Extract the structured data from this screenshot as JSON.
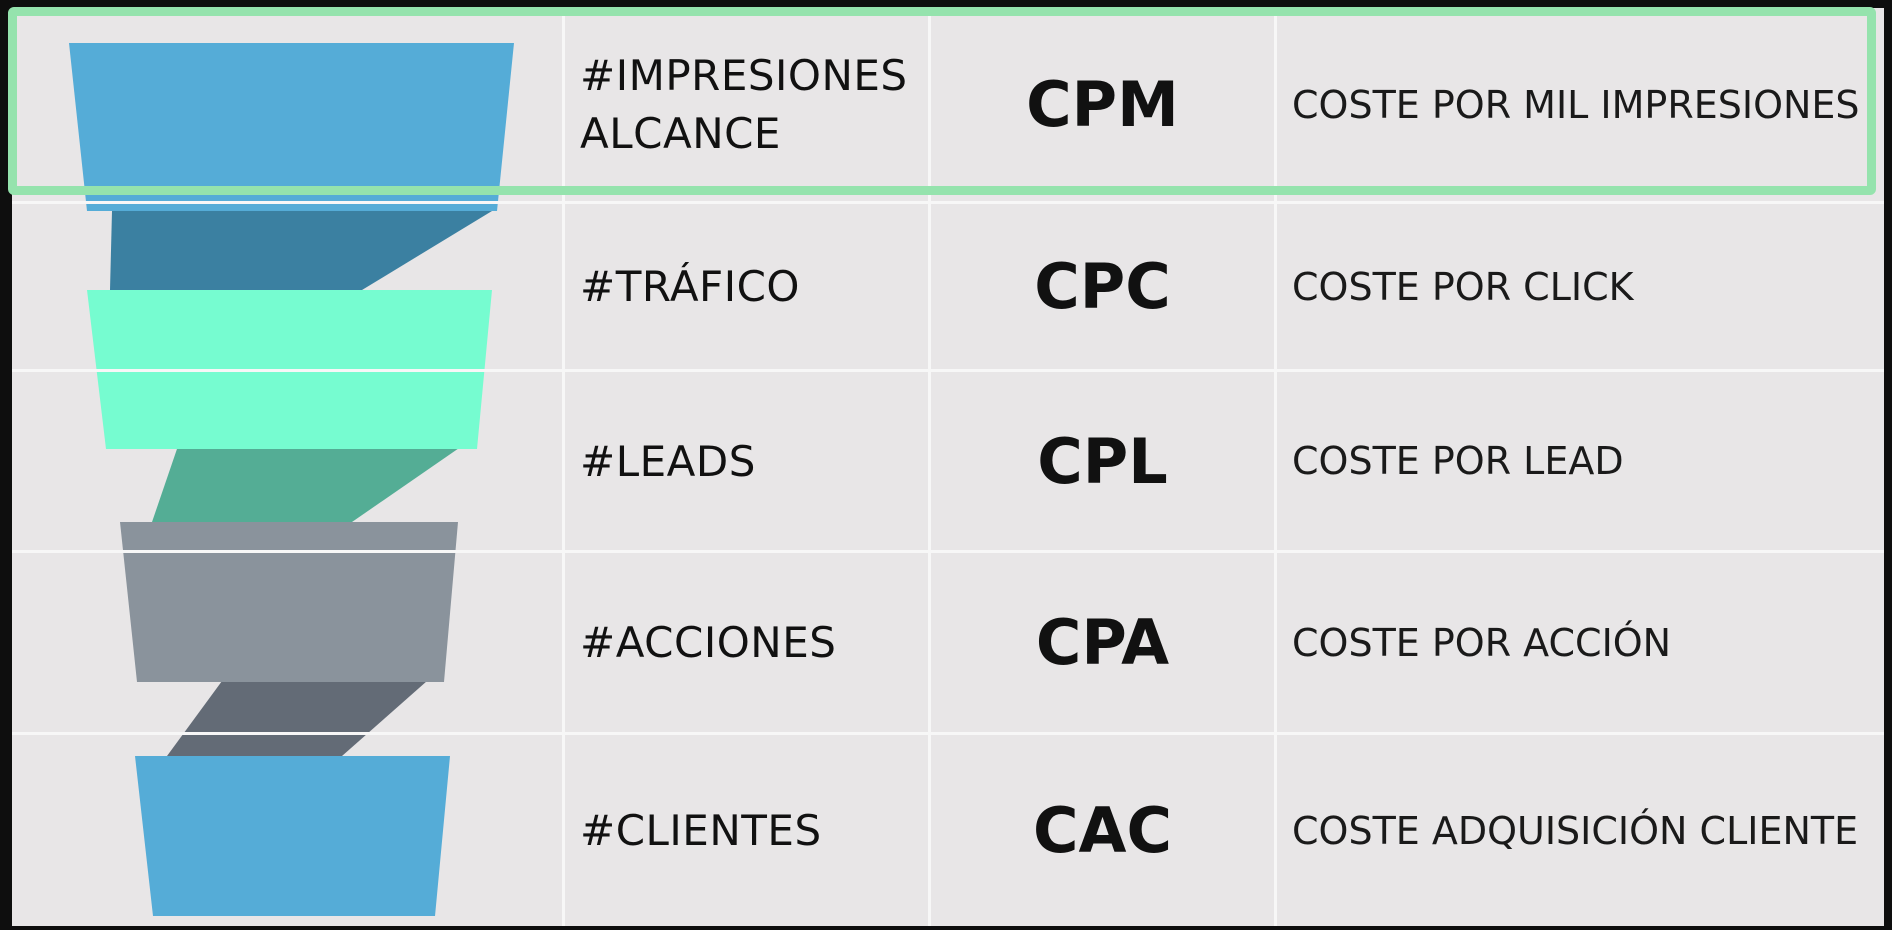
{
  "rows": [
    {
      "metric_lines": [
        "#IMPRESIONES",
        "ALCANCE"
      ],
      "abbr": "CPM",
      "desc": "COSTE POR MIL IMPRESIONES"
    },
    {
      "metric_lines": [
        "#TRÁFICO"
      ],
      "abbr": "CPC",
      "desc": "COSTE POR CLICK"
    },
    {
      "metric_lines": [
        "#LEADS"
      ],
      "abbr": "CPL",
      "desc": "COSTE POR LEAD"
    },
    {
      "metric_lines": [
        "#ACCIONES"
      ],
      "abbr": "CPA",
      "desc": "COSTE POR ACCIÓN"
    },
    {
      "metric_lines": [
        "#CLIENTES"
      ],
      "abbr": "CAC",
      "desc": "COSTE ADQUISICIÓN CLIENTE"
    }
  ],
  "highlighted_row": 0,
  "colors": {
    "highlight_border": "#95e3ad",
    "funnel_segments": [
      "#55acd7",
      "#76fcd0",
      "#8a939c",
      "#55acd7"
    ],
    "funnel_connectors": [
      "#3b80a1",
      "#54ad95",
      "#636b76"
    ]
  }
}
